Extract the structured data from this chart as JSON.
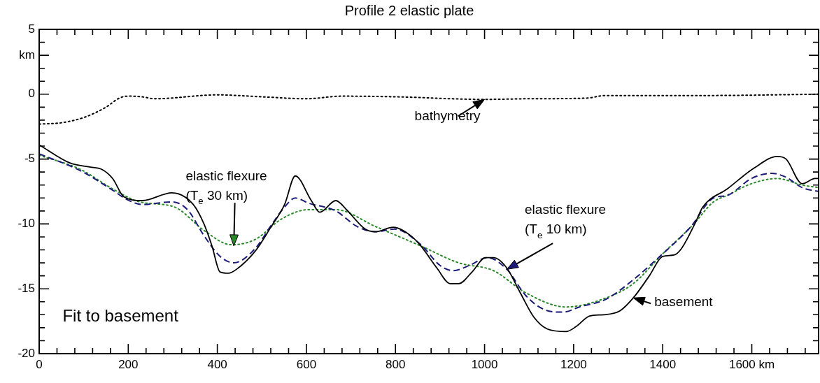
{
  "chart_data": {
    "type": "line",
    "title": "Profile 2 elastic plate",
    "xlim": [
      0,
      1750
    ],
    "xticks": [
      0,
      {
        "value": 40,
        "label": null
      },
      {
        "value": 80,
        "label": null
      },
      {
        "value": 120,
        "label": null
      },
      {
        "value": 160,
        "label": null
      },
      200,
      {
        "value": 240,
        "label": null
      },
      {
        "value": 280,
        "label": null
      },
      {
        "value": 320,
        "label": null
      },
      {
        "value": 360,
        "label": null
      },
      400,
      {
        "value": 440,
        "label": null
      },
      {
        "value": 480,
        "label": null
      },
      {
        "value": 520,
        "label": null
      },
      {
        "value": 560,
        "label": null
      },
      600,
      {
        "value": 640,
        "label": null
      },
      {
        "value": 680,
        "label": null
      },
      {
        "value": 720,
        "label": null
      },
      {
        "value": 760,
        "label": null
      },
      800,
      {
        "value": 840,
        "label": null
      },
      {
        "value": 880,
        "label": null
      },
      {
        "value": 920,
        "label": null
      },
      {
        "value": 960,
        "label": null
      },
      1000,
      {
        "value": 1040,
        "label": null
      },
      {
        "value": 1080,
        "label": null
      },
      {
        "value": 1120,
        "label": null
      },
      {
        "value": 1160,
        "label": null
      },
      1200,
      {
        "value": 1240,
        "label": null
      },
      {
        "value": 1280,
        "label": null
      },
      {
        "value": 1320,
        "label": null
      },
      {
        "value": 1360,
        "label": null
      },
      1400,
      {
        "value": 1440,
        "label": null
      },
      {
        "value": 1480,
        "label": null
      },
      {
        "value": 1520,
        "label": null
      },
      {
        "value": 1560,
        "label": null
      },
      {
        "value": 1600,
        "label": "1600 km"
      },
      {
        "value": 1640,
        "label": null
      },
      {
        "value": 1680,
        "label": null
      },
      {
        "value": 1720,
        "label": null
      }
    ],
    "ylim": [
      -20,
      5
    ],
    "yticks": [
      -20,
      {
        "value": -19,
        "label": null
      },
      {
        "value": -18,
        "label": null
      },
      {
        "value": -17,
        "label": null
      },
      {
        "value": -16,
        "label": null
      },
      -15,
      {
        "value": -14,
        "label": null
      },
      {
        "value": -13,
        "label": null
      },
      {
        "value": -12,
        "label": null
      },
      {
        "value": -11,
        "label": null
      },
      -10,
      {
        "value": -9,
        "label": null
      },
      {
        "value": -8,
        "label": null
      },
      {
        "value": -7,
        "label": null
      },
      {
        "value": -6,
        "label": null
      },
      -5,
      {
        "value": -4,
        "label": null
      },
      {
        "value": -3,
        "label": null
      },
      {
        "value": -2,
        "label": null
      },
      {
        "value": -1,
        "label": null
      },
      0,
      {
        "value": 1,
        "label": null
      },
      {
        "value": 2,
        "label": null
      },
      {
        "value": 3,
        "label": "km"
      },
      {
        "value": 4,
        "label": null
      },
      5
    ],
    "grid": false,
    "legend": false,
    "marker": "none",
    "series": [
      {
        "color": "#000000",
        "line_style": "dotted",
        "x": [
          0,
          50,
          100,
          150,
          180,
          200,
          230,
          260,
          400,
          500,
          600,
          680,
          800,
          1000,
          1100,
          1230,
          1270,
          1500,
          1750
        ],
        "values": [
          -2.3,
          -2.2,
          -1.8,
          -1.0,
          -0.3,
          -0.15,
          -0.2,
          -0.35,
          -0.05,
          -0.2,
          -0.35,
          -0.15,
          -0.2,
          -0.4,
          -0.35,
          -0.3,
          -0.1,
          -0.1,
          0
        ]
      },
      {
        "color": "#000000",
        "line_style": "solid",
        "x": [
          0,
          69,
          111,
          141,
          165,
          190,
          232,
          298,
          346,
          370,
          388,
          406,
          425,
          443,
          485,
          521,
          551,
          575,
          611,
          630,
          666,
          690,
          732,
          755,
          795,
          834,
          857,
          893,
          923,
          942,
          972,
          1002,
          1020,
          1050,
          1080,
          1111,
          1141,
          1183,
          1206,
          1236,
          1267,
          1304,
          1334,
          1370,
          1400,
          1425,
          1442,
          1472,
          1490,
          1545,
          1605,
          1657,
          1677,
          1713,
          1742,
          1750
        ],
        "values": [
          -3.9,
          -5.3,
          -5.6,
          -5.8,
          -6.5,
          -7.9,
          -8.2,
          -7.6,
          -8.5,
          -10.0,
          -11.7,
          -13.7,
          -13.8,
          -13.5,
          -12.1,
          -10.2,
          -8.5,
          -6.3,
          -8.2,
          -9.1,
          -8.2,
          -8.9,
          -10.4,
          -10.6,
          -10.25,
          -10.9,
          -11.7,
          -13.4,
          -14.6,
          -14.6,
          -13.7,
          -12.6,
          -12.6,
          -13.4,
          -15.3,
          -17.2,
          -18.1,
          -18.3,
          -17.9,
          -17.1,
          -17.0,
          -16.7,
          -15.7,
          -14.0,
          -12.5,
          -12.4,
          -11.9,
          -10.0,
          -8.7,
          -7.3,
          -5.7,
          -4.8,
          -5.0,
          -6.9,
          -6.5,
          -6.5
        ]
      },
      {
        "color": "#1c1c78",
        "line_style": "dashed",
        "x": [
          0,
          93,
          165,
          196,
          232,
          298,
          333,
          370,
          406,
          437,
          485,
          521,
          551,
          575,
          605,
          666,
          714,
          755,
          798,
          857,
          900,
          930,
          966,
          1006,
          1050,
          1092,
          1134,
          1177,
          1213,
          1273,
          1334,
          1400,
          1461,
          1514,
          1545,
          1599,
          1644,
          1677,
          1713,
          1750
        ],
        "values": [
          -4.6,
          -5.9,
          -7.4,
          -8.1,
          -8.5,
          -8.3,
          -8.9,
          -10.9,
          -12.5,
          -13.0,
          -11.9,
          -10.1,
          -8.7,
          -8.0,
          -8.4,
          -9.0,
          -10.2,
          -10.6,
          -10.4,
          -11.6,
          -13.2,
          -13.6,
          -13.2,
          -12.6,
          -13.5,
          -15.5,
          -16.6,
          -16.8,
          -16.4,
          -15.8,
          -14.3,
          -12.3,
          -10.3,
          -8.0,
          -7.8,
          -6.5,
          -6.1,
          -6.4,
          -7.2,
          -7.5
        ]
      },
      {
        "color": "#2a8a2a",
        "line_style": "dotted",
        "x": [
          0,
          93,
          165,
          226,
          304,
          370,
          431,
          485,
          545,
          605,
          666,
          755,
          857,
          942,
          1020,
          1092,
          1183,
          1273,
          1334,
          1400,
          1467,
          1514,
          1545,
          1599,
          1657,
          1713,
          1750
        ],
        "values": [
          -4.7,
          -5.8,
          -7.3,
          -8.3,
          -8.7,
          -10.5,
          -11.6,
          -11.2,
          -9.6,
          -8.9,
          -8.9,
          -10.2,
          -11.7,
          -13.0,
          -13.6,
          -15.3,
          -16.4,
          -15.7,
          -14.6,
          -12.3,
          -10.1,
          -8.3,
          -7.8,
          -6.9,
          -6.5,
          -7.0,
          -7.2
        ]
      }
    ],
    "annotations": [
      {
        "text": "bathymetry",
        "x": 1000,
        "y": -0.4
      },
      {
        "text": "elastic flexure\n(T$_{e}$ 30 km)",
        "x": 437,
        "y": -11.7
      },
      {
        "text": "elastic flexure\n(T$_{e}$ 10 km)",
        "x": 1050,
        "y": -13.5
      },
      {
        "text": "basement",
        "x": 1334,
        "y": -15.7
      },
      "Fit to basement"
    ]
  }
}
